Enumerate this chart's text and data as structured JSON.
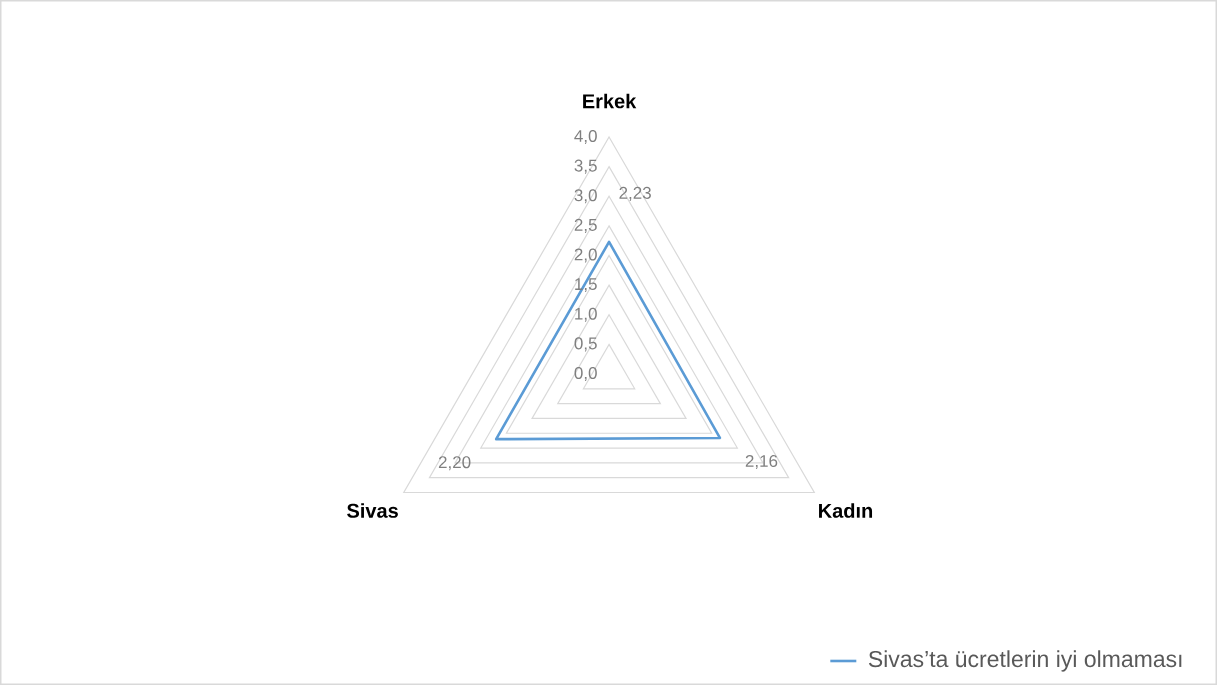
{
  "chart_data": {
    "type": "radar",
    "categories": [
      "Erkek",
      "Kadın",
      "Sivas"
    ],
    "series": [
      {
        "name": "Sivas’ta ücretlerin iyi olmaması",
        "color": "#5b9bd5",
        "values": [
          2.23,
          2.16,
          2.2
        ],
        "value_labels": [
          "2,23",
          "2,16",
          "2,20"
        ]
      }
    ],
    "ylim": [
      0,
      4
    ],
    "yticks": [
      {
        "value": 0,
        "label": "0,0"
      },
      {
        "value": 0.5,
        "label": "0,5"
      },
      {
        "value": 1,
        "label": "1,0"
      },
      {
        "value": 1.5,
        "label": "1,5"
      },
      {
        "value": 2,
        "label": "2,0"
      },
      {
        "value": 2.5,
        "label": "2,5"
      },
      {
        "value": 3,
        "label": "3,0"
      },
      {
        "value": 3.5,
        "label": "3,5"
      },
      {
        "value": 4,
        "label": "4,0"
      }
    ],
    "grid": true,
    "legend": "bottom right"
  }
}
